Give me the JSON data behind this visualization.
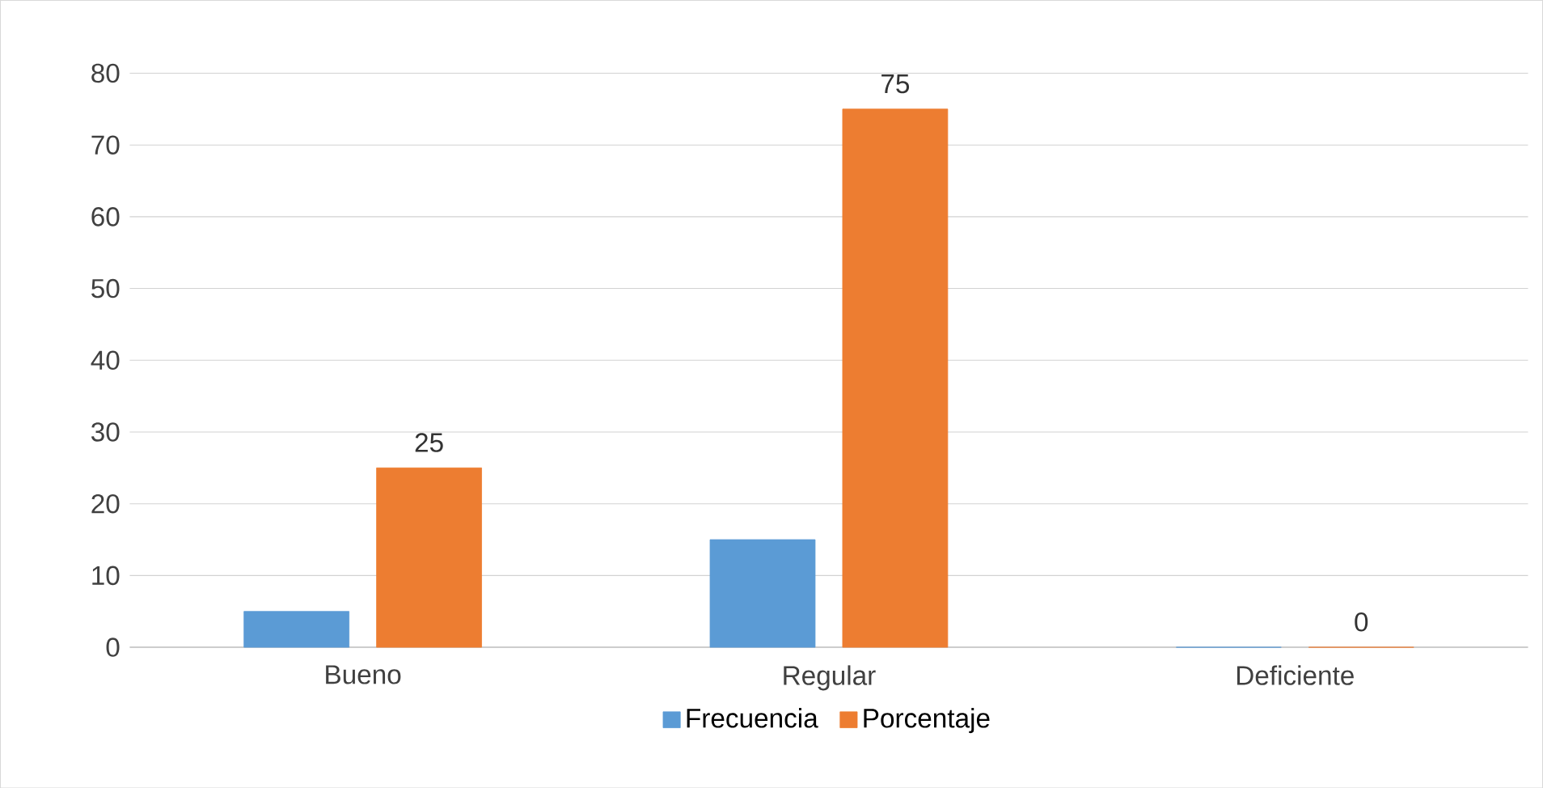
{
  "chart_data": {
    "type": "bar",
    "categories": [
      "Bueno",
      "Regular",
      "Deficiente"
    ],
    "series": [
      {
        "name": "Frecuencia",
        "color": "#5b9bd5",
        "values": [
          5,
          15,
          0
        ]
      },
      {
        "name": "Porcentaje",
        "color": "#ed7d31",
        "values": [
          25,
          75,
          0
        ],
        "value_labels": [
          "25",
          "75",
          "0"
        ]
      }
    ],
    "ylim": [
      0,
      80
    ],
    "yticks": [
      0,
      10,
      20,
      30,
      40,
      50,
      60,
      70,
      80
    ],
    "grid": "y",
    "legend": "bottom"
  }
}
